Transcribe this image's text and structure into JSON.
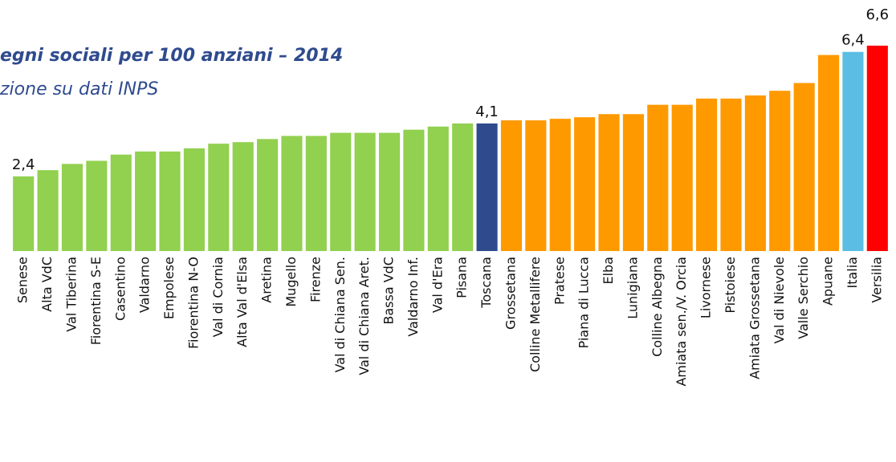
{
  "chart_data": {
    "type": "bar",
    "title": "egni sociali per 100 anziani – 2014",
    "subtitle": "zione su dati INPS",
    "categories": [
      "Senese",
      "Alta VdC",
      "Val Tiberina",
      "Fiorentina S-E",
      "Casentino",
      "Valdarno",
      "Empolese",
      "Fiorentina N-O",
      "Val di Cornia",
      "Alta Val d'Elsa",
      "Aretina",
      "Mugello",
      "Firenze",
      "Val di Chiana Sen.",
      "Val di Chiana Aret.",
      "Bassa VdC",
      "Valdarno Inf.",
      "Val d'Era",
      "Pisana",
      "Toscana",
      "Grossetana",
      "Colline Metallifere",
      "Pratese",
      "Piana di Lucca",
      "Elba",
      "Lunigiana",
      "Colline Albegna",
      "Amiata sen./V. Orcia",
      "Livornese",
      "Pistoiese",
      "Amiata Grossetana",
      "Val di Nievole",
      "Valle Serchio",
      "Apuane",
      "Italia",
      "Versilia"
    ],
    "values": [
      2.4,
      2.6,
      2.8,
      2.9,
      3.1,
      3.2,
      3.2,
      3.3,
      3.45,
      3.5,
      3.6,
      3.7,
      3.7,
      3.8,
      3.8,
      3.8,
      3.9,
      4.0,
      4.1,
      4.1,
      4.2,
      4.2,
      4.25,
      4.3,
      4.4,
      4.4,
      4.7,
      4.7,
      4.9,
      4.9,
      5.0,
      5.15,
      5.4,
      6.3,
      6.4,
      6.6
    ],
    "value_labels": [
      "2,4",
      null,
      null,
      null,
      null,
      null,
      null,
      null,
      null,
      null,
      null,
      null,
      null,
      null,
      null,
      null,
      null,
      null,
      null,
      "4,1",
      null,
      null,
      null,
      null,
      null,
      null,
      null,
      null,
      null,
      null,
      null,
      null,
      null,
      null,
      "6,4",
      "6,6"
    ],
    "colors": [
      "#92d050",
      "#92d050",
      "#92d050",
      "#92d050",
      "#92d050",
      "#92d050",
      "#92d050",
      "#92d050",
      "#92d050",
      "#92d050",
      "#92d050",
      "#92d050",
      "#92d050",
      "#92d050",
      "#92d050",
      "#92d050",
      "#92d050",
      "#92d050",
      "#92d050",
      "#2f4b8e",
      "#ff9900",
      "#ff9900",
      "#ff9900",
      "#ff9900",
      "#ff9900",
      "#ff9900",
      "#ff9900",
      "#ff9900",
      "#ff9900",
      "#ff9900",
      "#ff9900",
      "#ff9900",
      "#ff9900",
      "#ff9900",
      "#5bbde4",
      "#ff0000"
    ],
    "ylim": [
      0,
      7
    ]
  }
}
